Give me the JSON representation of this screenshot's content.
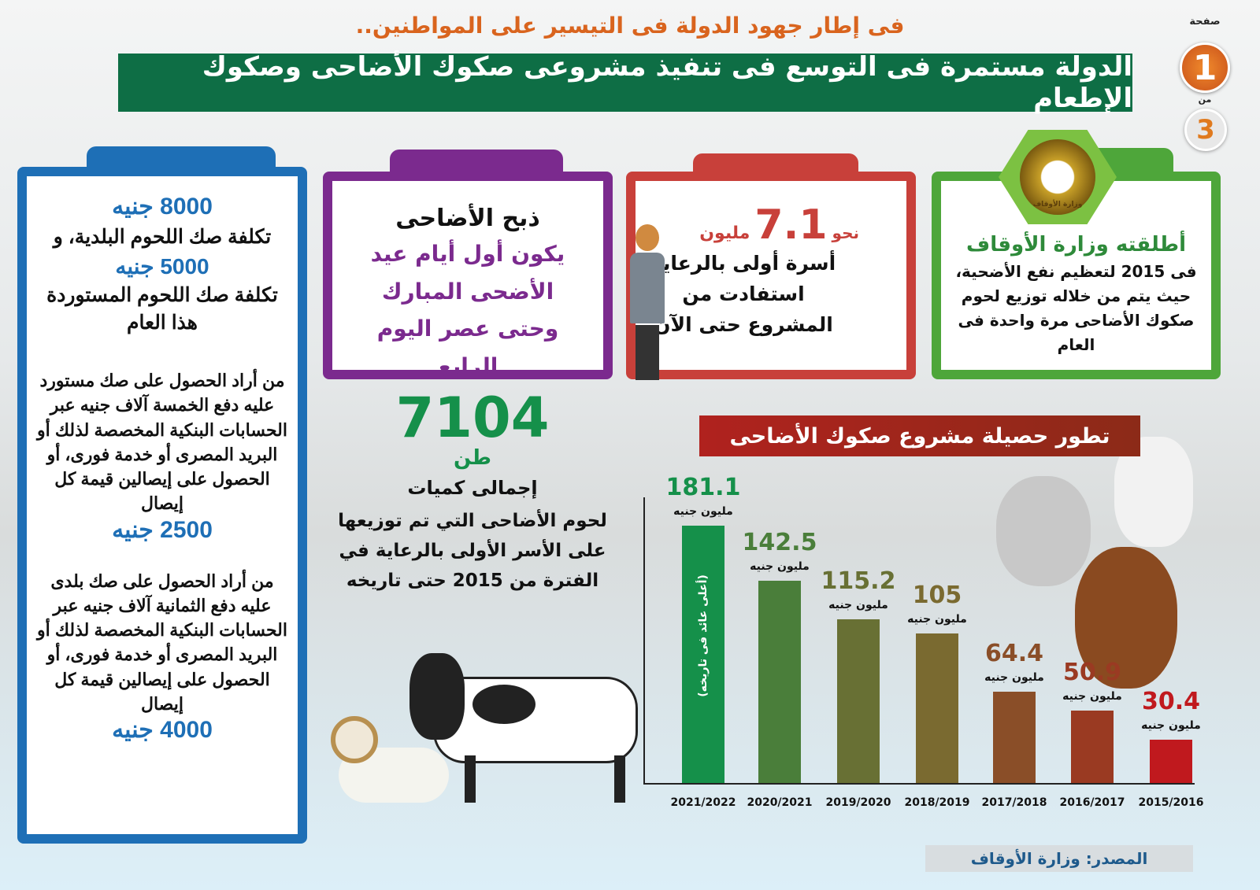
{
  "header": {
    "kicker": "فى إطار جهود الدولة فى التيسير على المواطنين..",
    "title": "الدولة مستمرة فى التوسع فى تنفيذ مشروعى صكوك الأضاحى وصكوك الإطعام"
  },
  "pagination": {
    "label": "صفحة",
    "current": "1",
    "of": "من",
    "total": "3"
  },
  "card_ministry": {
    "logo_text": "وزارة الأوقاف",
    "heading": "أطلقته وزارة الأوقاف",
    "body": "فى 2015 لتعظيم نفع الأضحية، حيث يتم من خلاله توزيع لحوم صكوك الأضاحى مرة واحدة فى العام",
    "color": "#4ea63a"
  },
  "card_families": {
    "prefix": "نحو",
    "number": "7.1",
    "unit": "مليون",
    "body": "أسرة أولى بالرعاية استفادت من المشروع حتى الآن",
    "color": "#c8403a"
  },
  "card_slaughter": {
    "heading": "ذبح الأضاحى",
    "body": "يكون أول أيام عيد الأضحى المبارك وحتى عصر اليوم الرابع",
    "color": "#7b2a8e"
  },
  "card_costs": {
    "cost1": "8000 جنيه",
    "line1": "تكلفة صك اللحوم البلدية، و",
    "cost2": "5000 جنيه",
    "line2": "تكلفة صك اللحوم المستوردة هذا العام",
    "imported_text": "من أراد الحصول على صك مستورد عليه دفع الخمسة آلاف جنيه عبر الحسابات البنكية المخصصة لذلك أو البريد المصرى أو خدمة فورى، أو الحصول على إيصالين قيمة كل إيصال",
    "imported_value": "2500 جنيه",
    "local_text": "من أراد الحصول على صك بلدى عليه دفع الثمانية آلاف جنيه عبر الحسابات البنكية المخصصة لذلك أو البريد المصرى أو خدمة فورى، أو الحصول على إيصالين قيمة كل إيصال",
    "local_value": "4000 جنيه",
    "color": "#1e6fb6"
  },
  "total": {
    "number": "7104",
    "unit": "طن",
    "heading": "إجمالى كميات",
    "body": "لحوم الأضاحى التي تم توزيعها على الأسر الأولى بالرعاية في الفترة من 2015 حتى تاريخه"
  },
  "source": "المصدر: وزارة الأوقاف",
  "chart_data": {
    "type": "bar",
    "title": "تطور حصيلة مشروع صكوك الأضاحى",
    "categories": [
      "2021/2022",
      "2020/2021",
      "2019/2020",
      "2018/2019",
      "2017/2018",
      "2016/2017",
      "2015/2016"
    ],
    "values": [
      181.1,
      142.5,
      115.2,
      105,
      64.4,
      50.9,
      30.4
    ],
    "value_unit": "مليون جنيه",
    "colors": [
      "#15904a",
      "#4a7e3a",
      "#687034",
      "#7a6a30",
      "#8a4e28",
      "#9a3a22",
      "#c0191e"
    ],
    "annotation": "(أعلى عائد فى تاريخه)",
    "ylim": [
      0,
      181.1
    ],
    "grid": false
  }
}
